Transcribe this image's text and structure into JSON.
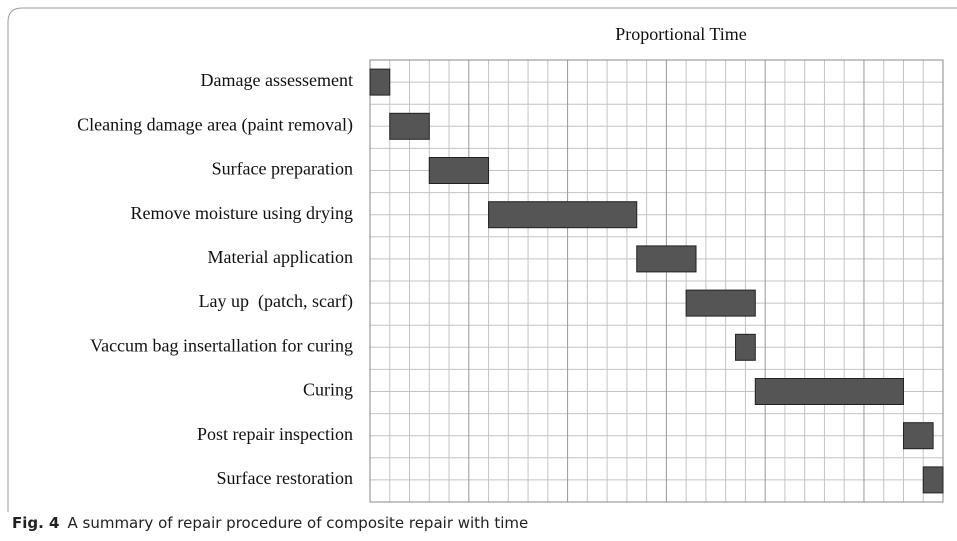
{
  "chart_data": {
    "type": "gantt",
    "title": "Proportional Time",
    "tasks": [
      {
        "name": "Damage assessement",
        "start": 0,
        "end": 1
      },
      {
        "name": "Cleaning damage area (paint removal)",
        "start": 1,
        "end": 3
      },
      {
        "name": "Surface preparation",
        "start": 3,
        "end": 6
      },
      {
        "name": "Remove moisture using drying",
        "start": 6,
        "end": 13.5
      },
      {
        "name": "Material application",
        "start": 13.5,
        "end": 16.5
      },
      {
        "name": "Lay up  (patch, scarf)",
        "start": 16,
        "end": 19.5
      },
      {
        "name": "Vaccum bag insertallation for curing",
        "start": 18.5,
        "end": 19.5
      },
      {
        "name": "Curing",
        "start": 19.5,
        "end": 27
      },
      {
        "name": "Post repair inspection",
        "start": 27,
        "end": 28.5
      },
      {
        "name": "Surface restoration",
        "start": 28,
        "end": 29
      }
    ],
    "color": "#555555",
    "xlim": [
      0,
      29
    ],
    "xticks": [
      0,
      1,
      2,
      3,
      4,
      5,
      6,
      7,
      8,
      9,
      10,
      11,
      12,
      13,
      14,
      15,
      16,
      17,
      18,
      19,
      20,
      21,
      22,
      23,
      24,
      25,
      26,
      27,
      28,
      29
    ],
    "grid": true
  },
  "caption": {
    "label": "Fig. 4",
    "text": "A summary of repair procedure of composite repair with time"
  }
}
